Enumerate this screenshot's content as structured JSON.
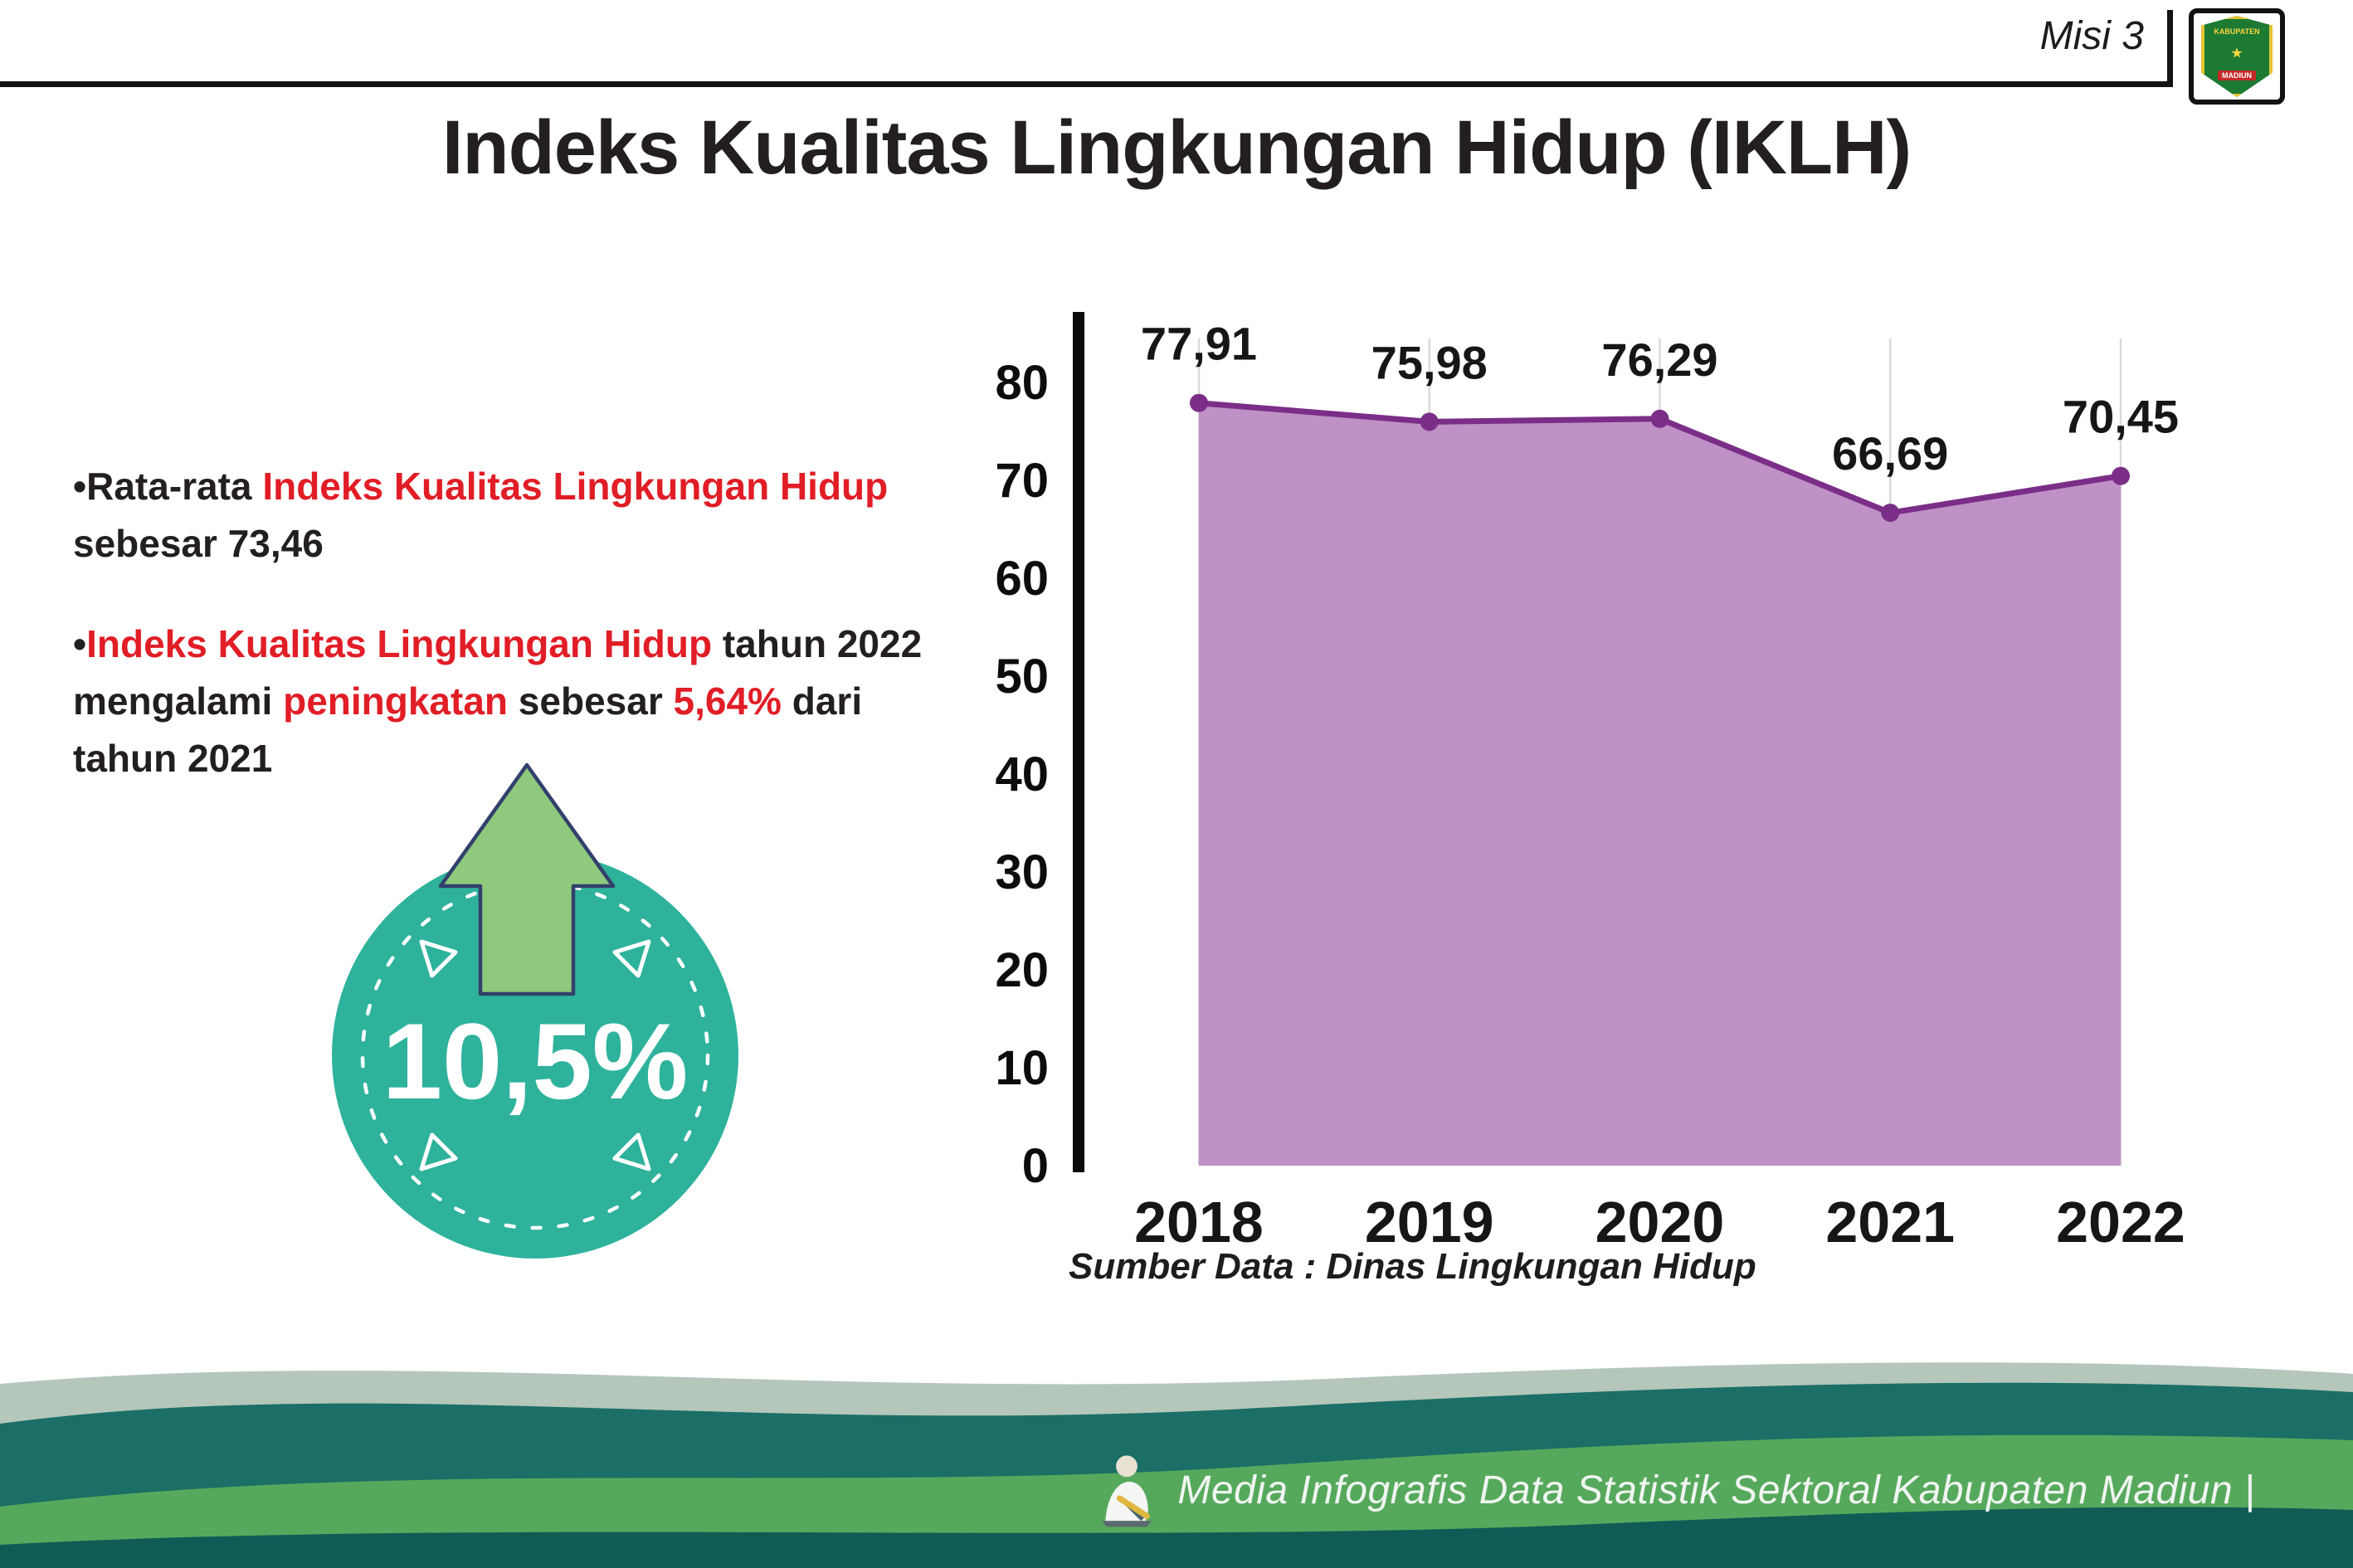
{
  "header": {
    "misi_label": "Misi 3",
    "title": "Indeks Kualitas Lingkungan Hidup (IKLH)",
    "logo": {
      "top_text": "KABUPATEN",
      "bottom_text": "MADIUN"
    }
  },
  "bullets": {
    "marker": "•",
    "b1": {
      "seg1": "Rata-rata ",
      "seg2": "Indeks Kualitas Lingkungan Hidup",
      "seg3": " sebesar 73,46"
    },
    "b2": {
      "seg1": "Indeks Kualitas Lingkungan Hidup",
      "seg2": " tahun 2022 mengalami ",
      "seg3": "peningkatan",
      "seg4": " sebesar ",
      "seg5": "5,64%",
      "seg6": " dari tahun 2021"
    }
  },
  "badge": {
    "value": "10,5%"
  },
  "chart_data": {
    "type": "area",
    "title": "",
    "xlabel": "",
    "ylabel": "",
    "categories": [
      "2018",
      "2019",
      "2020",
      "2021",
      "2022"
    ],
    "values": [
      77.91,
      75.98,
      76.29,
      66.69,
      70.45
    ],
    "labels": [
      "77,91",
      "75,98",
      "76,29",
      "66,69",
      "70,45"
    ],
    "ylim": [
      0,
      80
    ],
    "yticks": [
      0,
      10,
      20,
      30,
      40,
      50,
      60,
      70,
      80
    ],
    "grid": "vertical-light",
    "legend": "none",
    "fill_color": "#bf91c7",
    "line_color": "#7b2e87"
  },
  "source_note": "Sumber Data : Dinas Lingkungan Hidup",
  "footer": {
    "text": "Media Infografis Data Statistik Sektoral Kabupaten Madiun |"
  },
  "colors": {
    "accent_red": "#e11d26",
    "text_dark": "#231f20",
    "badge_teal": "#2eb29c",
    "arrow_green": "#8fc97d",
    "chart_fill": "#bf91c7",
    "chart_line": "#7b2e87",
    "footer_pale": "#b5c6ba",
    "footer_dark_teal": "#1b6f66",
    "footer_green": "#56a95c",
    "footer_deep_teal": "#0f5c56"
  }
}
